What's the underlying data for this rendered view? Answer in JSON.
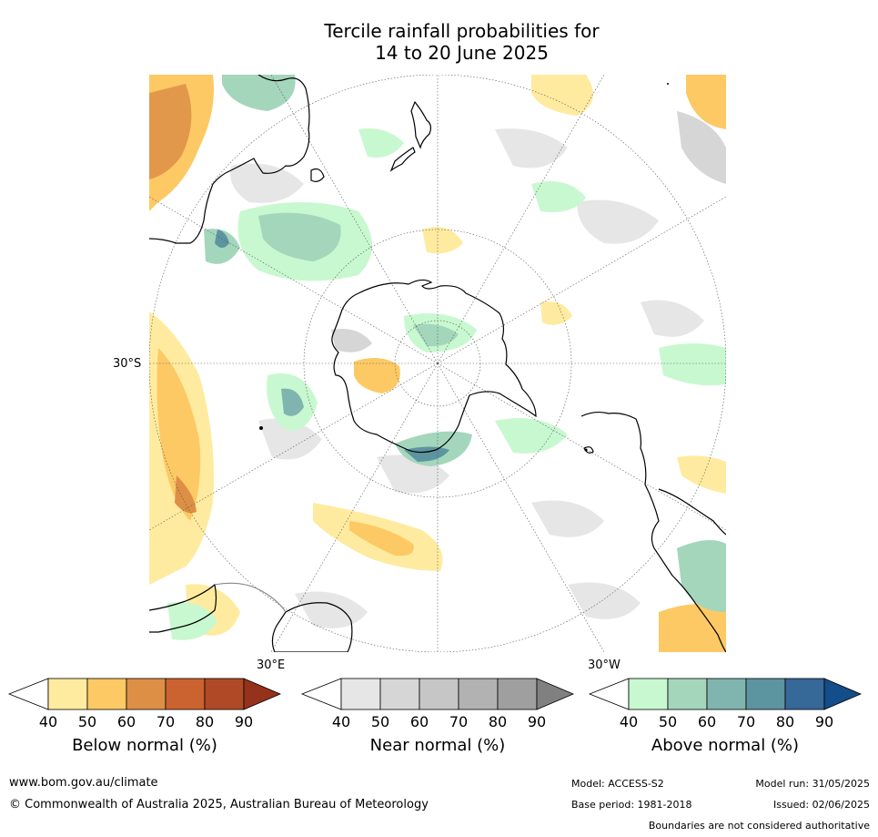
{
  "title": {
    "line1": "Tercile rainfall probabilities for",
    "line2": "14 to 20 June 2025"
  },
  "map": {
    "projection": "south-polar-stereographic",
    "lat_label": "30°S",
    "lon_label_east": "30°E",
    "lon_label_west": "30°W",
    "colors": {
      "ocean_background": "#ffffff",
      "coastline": "#000000",
      "graticule": "#555555"
    }
  },
  "legends": [
    {
      "name": "below",
      "label": "Below normal (%)",
      "ticks": [
        "40",
        "50",
        "60",
        "70",
        "80",
        "90"
      ],
      "colors": [
        "#ffffff",
        "#ffeb9f",
        "#fdc964",
        "#dd8f45",
        "#cb6330",
        "#b04a26",
        "#94321c"
      ]
    },
    {
      "name": "near",
      "label": "Near normal (%)",
      "ticks": [
        "40",
        "50",
        "60",
        "70",
        "80",
        "90"
      ],
      "colors": [
        "#ffffff",
        "#e6e6e6",
        "#d6d6d6",
        "#c6c6c6",
        "#b2b2b2",
        "#9f9f9f",
        "#808080"
      ]
    },
    {
      "name": "above",
      "label": "Above normal (%)",
      "ticks": [
        "40",
        "50",
        "60",
        "70",
        "80",
        "90"
      ],
      "colors": [
        "#ffffff",
        "#c8f8cf",
        "#a4d6bc",
        "#7fb5ae",
        "#5c94a0",
        "#366898",
        "#134d8a"
      ]
    }
  ],
  "footer": {
    "website": "www.bom.gov.au/climate",
    "copyright": "© Commonwealth of Australia 2025, Australian Bureau of Meteorology",
    "model": "Model: ACCESS-S2",
    "model_run": "Model run: 31/05/2025",
    "base_period": "Base period: 1981-2018",
    "issued": "Issued: 02/06/2025",
    "disclaimer": "Boundaries are not considered authoritative"
  }
}
